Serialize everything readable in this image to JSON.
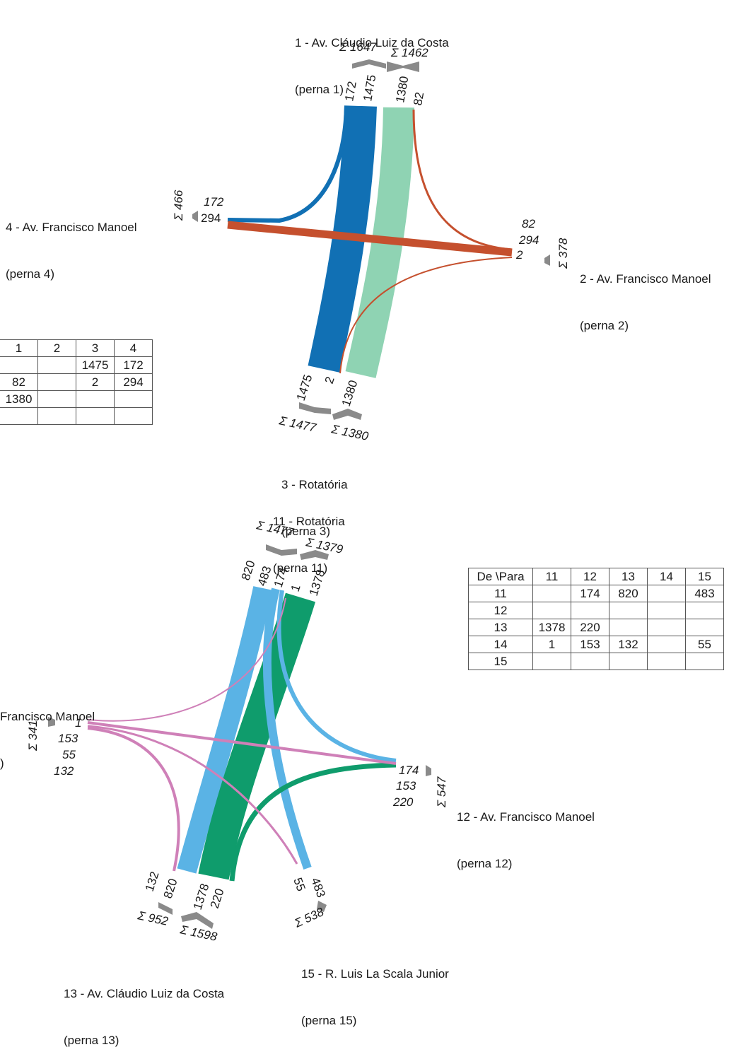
{
  "legs": {
    "leg1": {
      "name": "1 - Av. Cláudio Luiz da Costa",
      "sub": "(perna 1)"
    },
    "leg2": {
      "name": "2 - Av. Francisco Manoel",
      "sub": "(perna 2)"
    },
    "leg3": {
      "name": "3 - Rotatória",
      "sub": "(perna 3)"
    },
    "leg4": {
      "name": "4 - Av. Francisco Manoel",
      "sub": "(perna 4)"
    },
    "leg11": {
      "name": "11 - Rotatória",
      "sub": "(perna 11)"
    },
    "leg12": {
      "name": "12 - Av. Francisco Manoel",
      "sub": "(perna 12)"
    },
    "leg13": {
      "name": "13 - Av. Cláudio Luiz da Costa",
      "sub": "(perna 13)"
    },
    "leg14": {
      "name": "Francisco Manoel",
      "sub": ")"
    },
    "leg15": {
      "name": "15 - R. Luis La Scala Junior",
      "sub": "(perna 15)"
    }
  },
  "sums": {
    "leg1_out": "Σ 1647",
    "leg1_in": "Σ 1462",
    "leg2": "Σ 378",
    "leg3_in": "Σ 1477",
    "leg3_out": "Σ 1380",
    "leg4": "Σ 466",
    "leg11_out": "Σ 1477",
    "leg11_in": "Σ 1379",
    "leg12": "Σ 547",
    "leg13_in": "Σ 952",
    "leg13_out": "Σ 1598",
    "leg14": "Σ 341",
    "leg15": "Σ 538"
  },
  "flow_labels": {
    "leg1": [
      "172",
      "1475",
      "1380",
      "82"
    ],
    "leg2": [
      "82",
      "294",
      "2"
    ],
    "leg3": [
      "1475",
      "2",
      "1380"
    ],
    "leg4": [
      "172",
      "294"
    ],
    "leg11": [
      "820",
      "483",
      "174",
      "1",
      "1378"
    ],
    "leg12": [
      "174",
      "153",
      "220"
    ],
    "leg13": [
      "132",
      "820",
      "1378",
      "220"
    ],
    "leg14": [
      "1",
      "153",
      "55",
      "132"
    ],
    "leg15": [
      "483",
      "55"
    ]
  },
  "table_a": {
    "header": [
      "",
      "1",
      "2",
      "3",
      "4"
    ],
    "rows": [
      [
        "",
        "",
        "",
        "1475",
        "172"
      ],
      [
        "",
        "82",
        "",
        "2",
        "294"
      ],
      [
        "",
        "1380",
        "",
        "",
        ""
      ],
      [
        "",
        "",
        "",
        "",
        ""
      ]
    ]
  },
  "table_b": {
    "header": [
      "De \\Para",
      "11",
      "12",
      "13",
      "14",
      "15"
    ],
    "rows": [
      [
        "11",
        "",
        "174",
        "820",
        "",
        "483"
      ],
      [
        "12",
        "",
        "",
        "",
        "",
        ""
      ],
      [
        "13",
        "1378",
        "220",
        "",
        "",
        ""
      ],
      [
        "14",
        "1",
        "153",
        "132",
        "",
        "55"
      ],
      [
        "15",
        "",
        "",
        "",
        "",
        ""
      ]
    ]
  },
  "colors": {
    "dark_blue": "#1170b4",
    "light_green": "#8fd3b3",
    "orange": "#c5502e",
    "light_blue": "#5ab3e5",
    "green": "#0f9c6c",
    "pink": "#cf80b8",
    "gray": "#8a8a8a"
  }
}
